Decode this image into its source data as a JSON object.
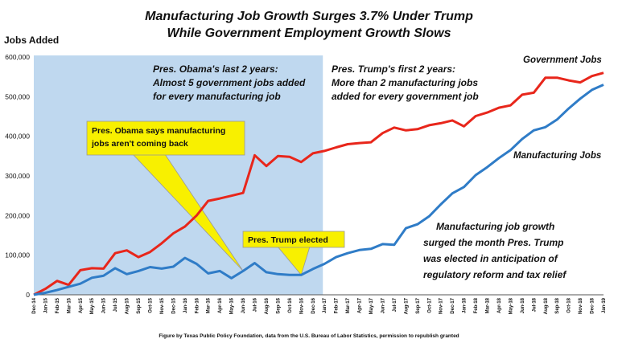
{
  "chart_data": {
    "type": "line",
    "title_lines": [
      "Manufacturing Job Growth Surges 3.7% Under Trump",
      "While Government Employment Growth Slows"
    ],
    "ylabel": "Jobs Added",
    "ylim": [
      0,
      600000
    ],
    "yticks": [
      "0",
      "100,000",
      "200,000",
      "300,000",
      "400,000",
      "500,000",
      "600,000"
    ],
    "categories": [
      "Dec-14",
      "Jan-15",
      "Feb-15",
      "Mar-15",
      "Apr-15",
      "May-15",
      "Jun-15",
      "Jul-15",
      "Aug-15",
      "Sep-15",
      "Oct-15",
      "Nov-15",
      "Dec-15",
      "Jan-16",
      "Feb-16",
      "Mar-16",
      "Apr-16",
      "May-16",
      "Jun-16",
      "Jul-16",
      "Aug-16",
      "Sep-16",
      "Oct-16",
      "Nov-16",
      "Dec-16",
      "Jan-17",
      "Feb-17",
      "Mar-17",
      "Apr-17",
      "May-17",
      "Jun-17",
      "Jul-17",
      "Aug-17",
      "Sep-17",
      "Oct-17",
      "Nov-17",
      "Dec-17",
      "Jan-18",
      "Feb-18",
      "Mar-18",
      "Apr-18",
      "May-18",
      "Jun-18",
      "Jul-18",
      "Aug-18",
      "Sep-18",
      "Oct-18",
      "Nov-18",
      "Dec-18",
      "Jan-19"
    ],
    "series": [
      {
        "name": "Government Jobs",
        "color": "#e8261b",
        "values": [
          0,
          15000,
          35000,
          25000,
          62000,
          67000,
          66000,
          105000,
          112000,
          95000,
          108000,
          130000,
          155000,
          172000,
          200000,
          237000,
          243000,
          250000,
          257000,
          352000,
          325000,
          350000,
          348000,
          335000,
          357000,
          363000,
          372000,
          380000,
          383000,
          385000,
          408000,
          422000,
          415000,
          418000,
          428000,
          433000,
          440000,
          425000,
          451000,
          460000,
          472000,
          478000,
          505000,
          510000,
          548000,
          548000,
          541000,
          536000,
          552000,
          560000
        ]
      },
      {
        "name": "Manufacturing Jobs",
        "color": "#2f7cc7",
        "values": [
          0,
          5000,
          12000,
          20000,
          28000,
          43000,
          48000,
          67000,
          52000,
          60000,
          70000,
          66000,
          71000,
          93000,
          78000,
          54000,
          60000,
          42000,
          60000,
          80000,
          57000,
          52000,
          50000,
          50000,
          65000,
          78000,
          95000,
          105000,
          113000,
          116000,
          128000,
          126000,
          168000,
          178000,
          198000,
          228000,
          256000,
          272000,
          302000,
          322000,
          345000,
          365000,
          393000,
          415000,
          423000,
          442000,
          470000,
          495000,
          517000,
          530000
        ]
      }
    ],
    "grid": false,
    "shaded_region": {
      "from": "Dec-14",
      "to": "Jan-17",
      "color": "#bfd8ef"
    },
    "annotations": {
      "obama_box": [
        "Pres. Obama's last 2 years:",
        "Almost 5 government jobs added",
        "for every manufacturing job"
      ],
      "trump_box": [
        "Pres. Trump's first 2 years:",
        "More than 2 manufacturing jobs",
        "added for every government job"
      ],
      "obama_callout": [
        "Pres. Obama says manufacturing",
        "jobs aren't coming back"
      ],
      "trump_callout": "Pres. Trump elected",
      "growth_note": [
        "Manufacturing job growth",
        "surged the month Pres. Trump",
        "was elected in anticipation of",
        "regulatory reform and tax relief"
      ],
      "gov_label": "Government Jobs",
      "mfg_label": "Manufacturing Jobs"
    },
    "source": "Figure by Texas Public Policy Foundation, data from the U.S. Bureau of Labor Statistics, permission to republish granted"
  }
}
